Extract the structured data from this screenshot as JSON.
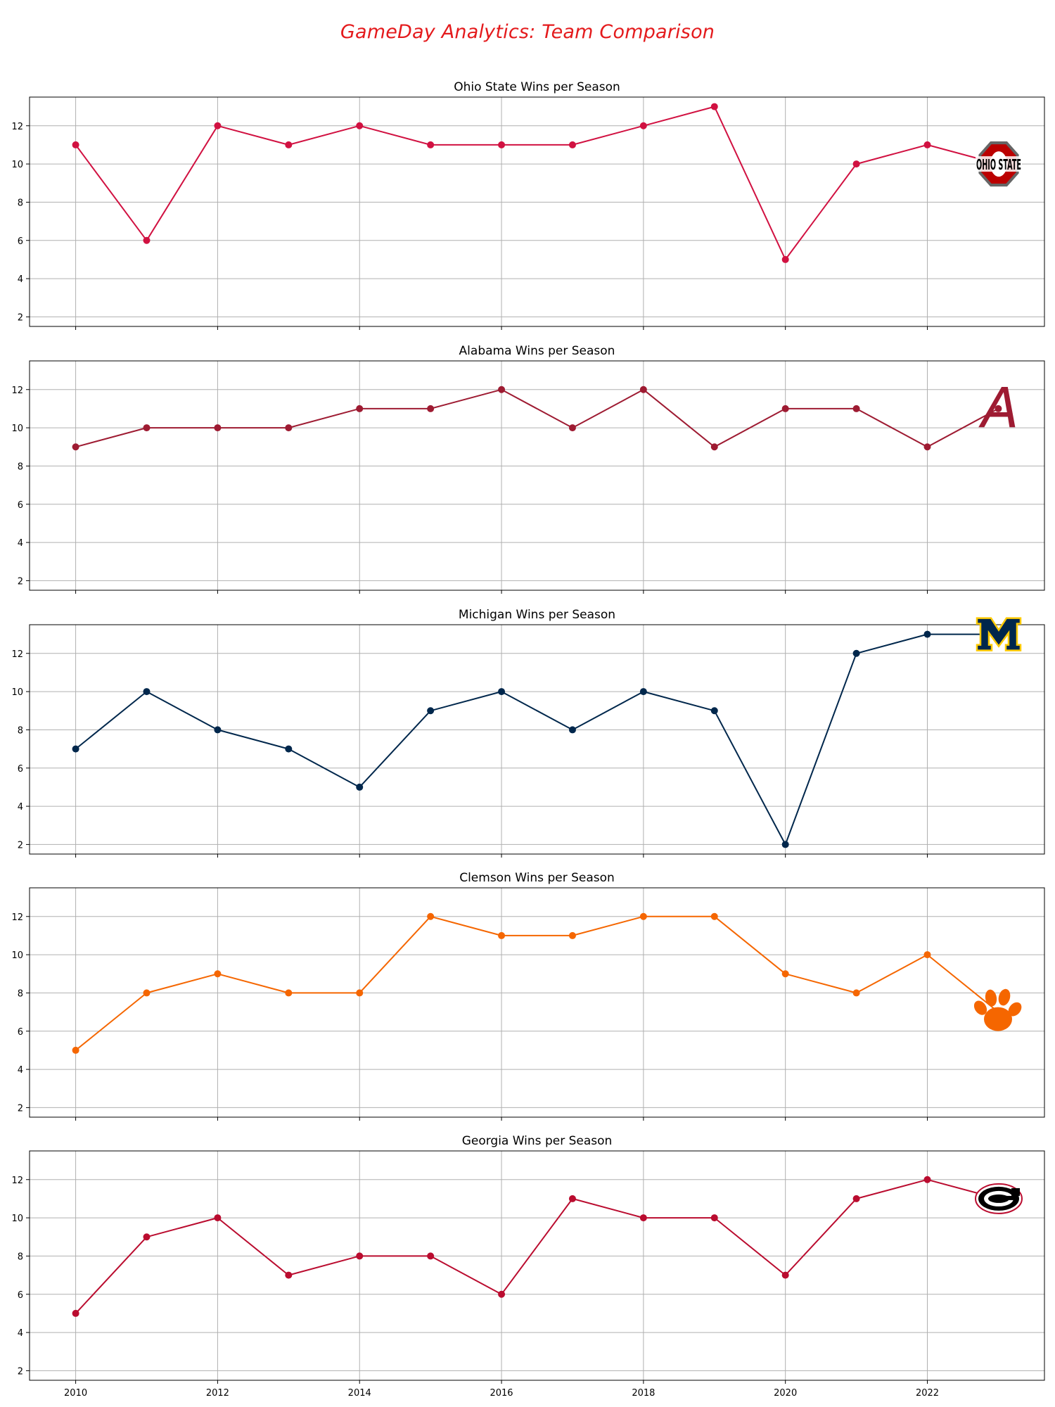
{
  "figure": {
    "title": "GameDay Analytics: Team Comparison"
  },
  "chart_data": [
    {
      "type": "line",
      "title": "Ohio State Wins per Season",
      "xlabel": "",
      "ylabel": "",
      "x": [
        2010,
        2011,
        2012,
        2013,
        2014,
        2015,
        2016,
        2017,
        2018,
        2019,
        2020,
        2021,
        2022,
        2023
      ],
      "series": [
        {
          "values": [
            11,
            6,
            12,
            11,
            12,
            11,
            11,
            11,
            12,
            13,
            5,
            10,
            11,
            10
          ],
          "color": "#d11141"
        }
      ],
      "xlim": [
        2009.35,
        2023.65
      ],
      "ylim": [
        1.5,
        13.5
      ],
      "yticks": [
        2,
        4,
        6,
        8,
        10,
        12
      ],
      "xticks": [
        2010,
        2012,
        2014,
        2016,
        2018,
        2020,
        2022
      ],
      "grid": true,
      "logo": {
        "icon": "ohio-state-logo-icon",
        "text": "OHIO STATE",
        "colors": [
          "#bb0000",
          "#666666",
          "#000000"
        ]
      }
    },
    {
      "type": "line",
      "title": "Alabama Wins per Season",
      "xlabel": "",
      "ylabel": "",
      "x": [
        2010,
        2011,
        2012,
        2013,
        2014,
        2015,
        2016,
        2017,
        2018,
        2019,
        2020,
        2021,
        2022,
        2023
      ],
      "series": [
        {
          "values": [
            9,
            10,
            10,
            10,
            11,
            11,
            12,
            10,
            12,
            9,
            11,
            11,
            9,
            11
          ],
          "color": "#9e1b32"
        }
      ],
      "xlim": [
        2009.35,
        2023.65
      ],
      "ylim": [
        1.5,
        13.5
      ],
      "yticks": [
        2,
        4,
        6,
        8,
        10,
        12
      ],
      "xticks": [
        2010,
        2012,
        2014,
        2016,
        2018,
        2020,
        2022
      ],
      "grid": true,
      "logo": {
        "icon": "alabama-logo-icon",
        "text": "A",
        "colors": [
          "#9e1b32"
        ]
      }
    },
    {
      "type": "line",
      "title": "Michigan Wins per Season",
      "xlabel": "",
      "ylabel": "",
      "x": [
        2010,
        2011,
        2012,
        2013,
        2014,
        2015,
        2016,
        2017,
        2018,
        2019,
        2020,
        2021,
        2022,
        2023
      ],
      "series": [
        {
          "values": [
            7,
            10,
            8,
            7,
            5,
            9,
            10,
            8,
            10,
            9,
            2,
            12,
            13,
            13
          ],
          "color": "#00274c"
        }
      ],
      "xlim": [
        2009.35,
        2023.65
      ],
      "ylim": [
        1.5,
        13.5
      ],
      "yticks": [
        2,
        4,
        6,
        8,
        10,
        12
      ],
      "xticks": [
        2010,
        2012,
        2014,
        2016,
        2018,
        2020,
        2022
      ],
      "grid": true,
      "logo": {
        "icon": "michigan-logo-icon",
        "text": "M",
        "colors": [
          "#00274c",
          "#ffcb05"
        ]
      }
    },
    {
      "type": "line",
      "title": "Clemson Wins per Season",
      "xlabel": "",
      "ylabel": "",
      "x": [
        2010,
        2011,
        2012,
        2013,
        2014,
        2015,
        2016,
        2017,
        2018,
        2019,
        2020,
        2021,
        2022,
        2023
      ],
      "series": [
        {
          "values": [
            5,
            8,
            9,
            8,
            8,
            12,
            11,
            11,
            12,
            12,
            9,
            8,
            10,
            7
          ],
          "color": "#f56600"
        }
      ],
      "xlim": [
        2009.35,
        2023.65
      ],
      "ylim": [
        1.5,
        13.5
      ],
      "yticks": [
        2,
        4,
        6,
        8,
        10,
        12
      ],
      "xticks": [
        2010,
        2012,
        2014,
        2016,
        2018,
        2020,
        2022
      ],
      "grid": true,
      "logo": {
        "icon": "clemson-paw-logo-icon",
        "text": "",
        "colors": [
          "#f56600"
        ]
      }
    },
    {
      "type": "line",
      "title": "Georgia Wins per Season",
      "xlabel": "",
      "ylabel": "",
      "x": [
        2010,
        2011,
        2012,
        2013,
        2014,
        2015,
        2016,
        2017,
        2018,
        2019,
        2020,
        2021,
        2022,
        2023
      ],
      "series": [
        {
          "values": [
            5,
            9,
            10,
            7,
            8,
            8,
            6,
            11,
            10,
            10,
            7,
            11,
            12,
            11
          ],
          "color": "#ba0c2f"
        }
      ],
      "xlim": [
        2009.35,
        2023.65
      ],
      "ylim": [
        1.5,
        13.5
      ],
      "yticks": [
        2,
        4,
        6,
        8,
        10,
        12
      ],
      "xticks": [
        2010,
        2012,
        2014,
        2016,
        2018,
        2020,
        2022
      ],
      "grid": true,
      "logo": {
        "icon": "georgia-g-logo-icon",
        "text": "G",
        "colors": [
          "#000000",
          "#ba0c2f",
          "#ffffff"
        ]
      }
    }
  ]
}
